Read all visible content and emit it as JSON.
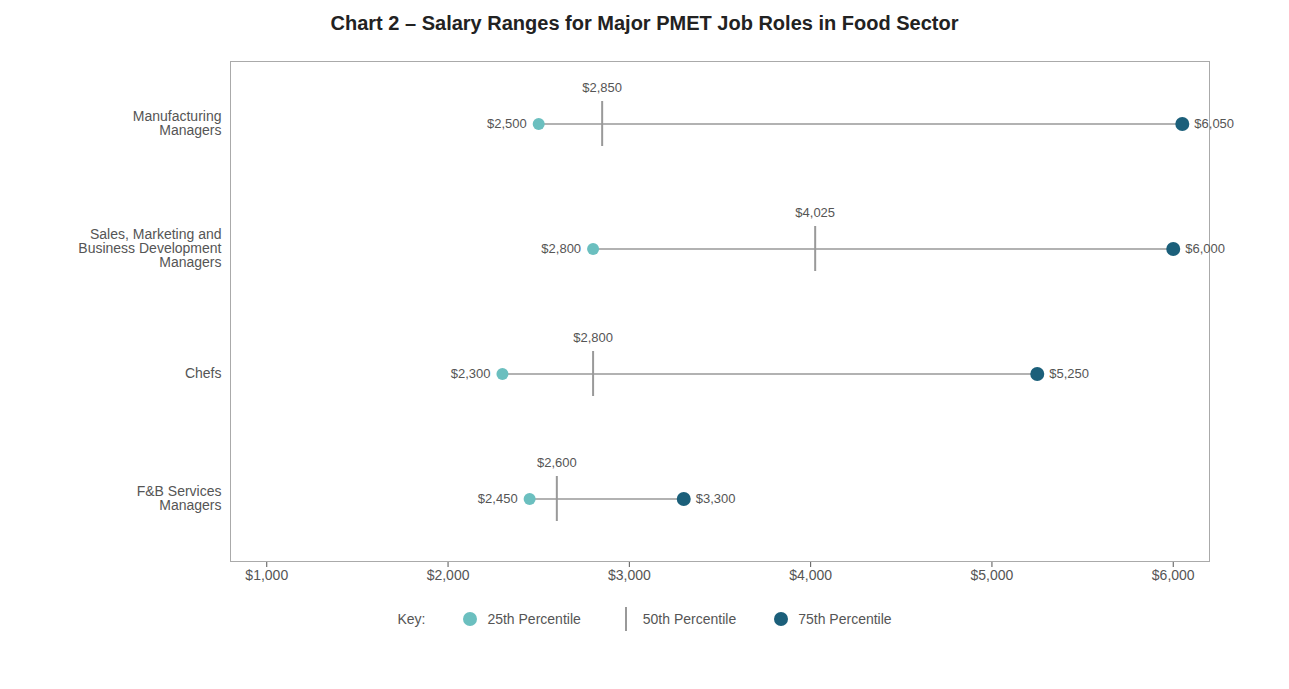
{
  "chart_data": {
    "type": "dumbbell",
    "title": "Chart 2 – Salary Ranges for Major PMET Job Roles in Food Sector",
    "categories": [
      "Manufacturing\nManagers",
      "Sales, Marketing and\nBusiness Development\nManagers",
      "Chefs",
      "F&B Services\nManagers"
    ],
    "series": [
      {
        "name": "25th Percentile",
        "color": "#6bbfbf",
        "marker": "o",
        "values": [
          2500,
          2800,
          2300,
          2450
        ],
        "value_labels": [
          "$2,500",
          "$2,800",
          "$2,300",
          "$2,450"
        ]
      },
      {
        "name": "50th Percentile",
        "color": "#999999",
        "marker": "|",
        "values": [
          2850,
          4025,
          2800,
          2600
        ],
        "value_labels": [
          "$2,850",
          "$4,025",
          "$2,800",
          "$2,600"
        ]
      },
      {
        "name": "75th Percentile",
        "color": "#1b5f7a",
        "marker": "o",
        "values": [
          6050,
          6000,
          5250,
          3300
        ],
        "value_labels": [
          "$6,050",
          "$6,000",
          "$5,250",
          "$3,300"
        ]
      }
    ],
    "xlim": [
      800,
      6200
    ],
    "xticks": [
      {
        "value": 1000,
        "label": "$1,000"
      },
      {
        "value": 2000,
        "label": "$2,000"
      },
      {
        "value": 3000,
        "label": "$3,000"
      },
      {
        "value": 4000,
        "label": "$4,000"
      },
      {
        "value": 5000,
        "label": "$5,000"
      },
      {
        "value": 6000,
        "label": "$6,000"
      }
    ],
    "data_labels": true,
    "grid": false,
    "legend": "bottom",
    "legend_title": "Key:"
  }
}
